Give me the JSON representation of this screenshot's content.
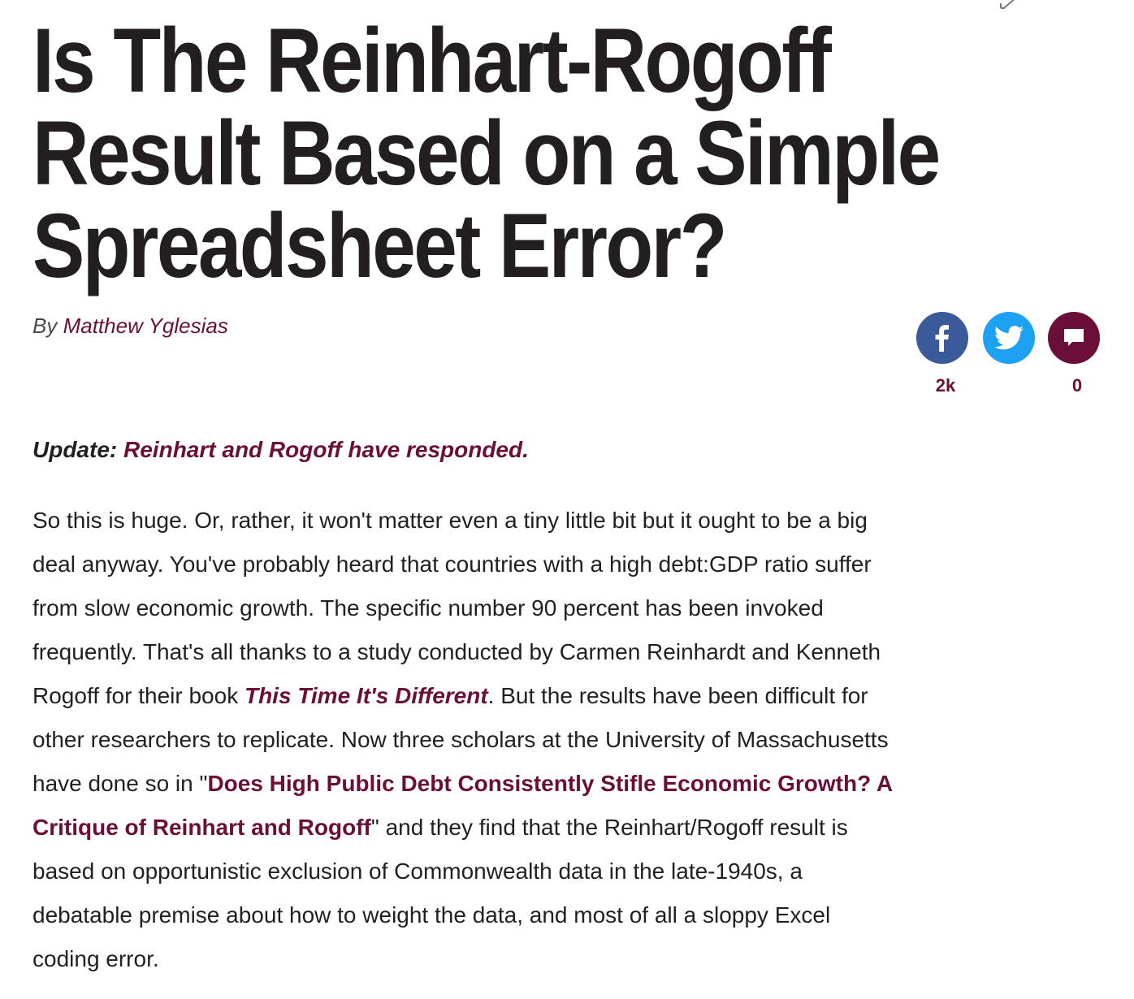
{
  "article": {
    "title_lines": [
      "Is The Reinhart-Rogoff",
      "Result Based on a Simple",
      "Spreadsheet Error?"
    ],
    "byline_prefix": "By",
    "author": "Matthew Yglesias"
  },
  "share": {
    "facebook_icon": "facebook-icon",
    "twitter_icon": "twitter-icon",
    "comment_icon": "comment-icon",
    "facebook_count": "2k",
    "comment_count": "0",
    "colors": {
      "facebook": "#3b5a9a",
      "twitter": "#1da1f2",
      "comment": "#6a0f38"
    }
  },
  "update": {
    "label": "Update:",
    "link_text": "Reinhart and Rogoff have responded."
  },
  "body": {
    "lines": [
      "So this is huge. Or, rather, it won't matter even a tiny little bit but it ought to be a big",
      "deal anyway. You've probably heard that countries with a high debt:GDP ratio suffer",
      "from slow economic growth. The specific number 90 percent has been invoked",
      "frequently. That's all thanks to a study conducted by Carmen Reinhardt and Kenneth"
    ],
    "line5_before": "Rogoff for their book ",
    "book_title": "This Time It's Different",
    "line5_after": ". But the results have been difficult for",
    "line6": "other researchers to replicate. Now three scholars at the University of Massachusetts",
    "line7_before": "have done so in \"",
    "paper_link_part1": "Does High Public Debt Consistently Stifle Economic Growth? A",
    "paper_link_part2": "Critique of Reinhart and Rogoff",
    "line8_after": "\" and they find that the Reinhart/Rogoff result is",
    "lines_end": [
      "based on opportunistic exclusion of Commonwealth data in the late-1940s, a",
      "debatable premise about how to weight the data, and most of all a sloppy Excel",
      "coding error."
    ]
  },
  "theme": {
    "accent": "#6a0f38",
    "text": "#231f20"
  }
}
